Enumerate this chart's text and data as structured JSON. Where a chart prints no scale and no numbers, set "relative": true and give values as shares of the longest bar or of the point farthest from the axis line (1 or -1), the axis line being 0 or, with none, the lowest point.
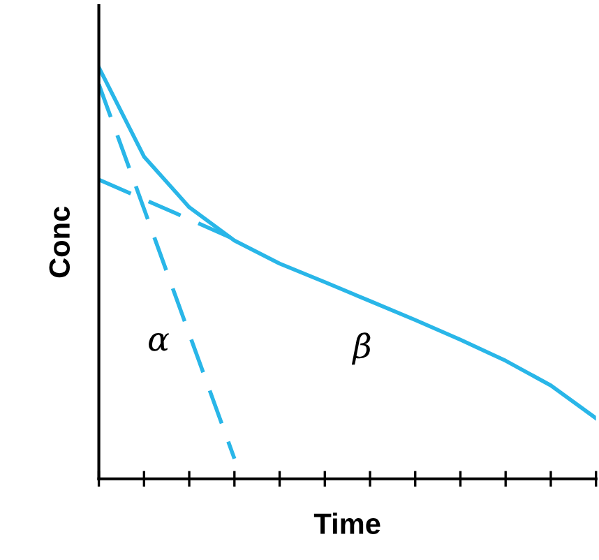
{
  "chart_data": {
    "type": "line",
    "relative": true,
    "xlabel": "Time",
    "ylabel": "Conc",
    "categories": [
      null,
      null,
      null,
      null,
      null,
      null,
      null,
      null,
      null,
      null,
      null,
      null
    ],
    "grid": false,
    "legend": false,
    "marker": "none",
    "series": [
      {
        "color": "#29b6e8",
        "line_style": "solid",
        "values": [
          1.0,
          0.783,
          0.66,
          0.579,
          0.523,
          0.478,
          0.432,
          0.386,
          0.338,
          0.287,
          0.227,
          0.147
        ]
      },
      {
        "color": "#29b6e8",
        "line_style": "dashed",
        "values": [
          0.959,
          0.656,
          0.352,
          0.049,
          null,
          null,
          null,
          null,
          null,
          null,
          null,
          null
        ]
      },
      {
        "color": "#29b6e8",
        "line_style": "dashed",
        "values": [
          0.727,
          0.679,
          0.631,
          0.582,
          null,
          null,
          null,
          null,
          null,
          null,
          null,
          null
        ]
      }
    ],
    "annotations": [
      "α",
      "β"
    ]
  }
}
